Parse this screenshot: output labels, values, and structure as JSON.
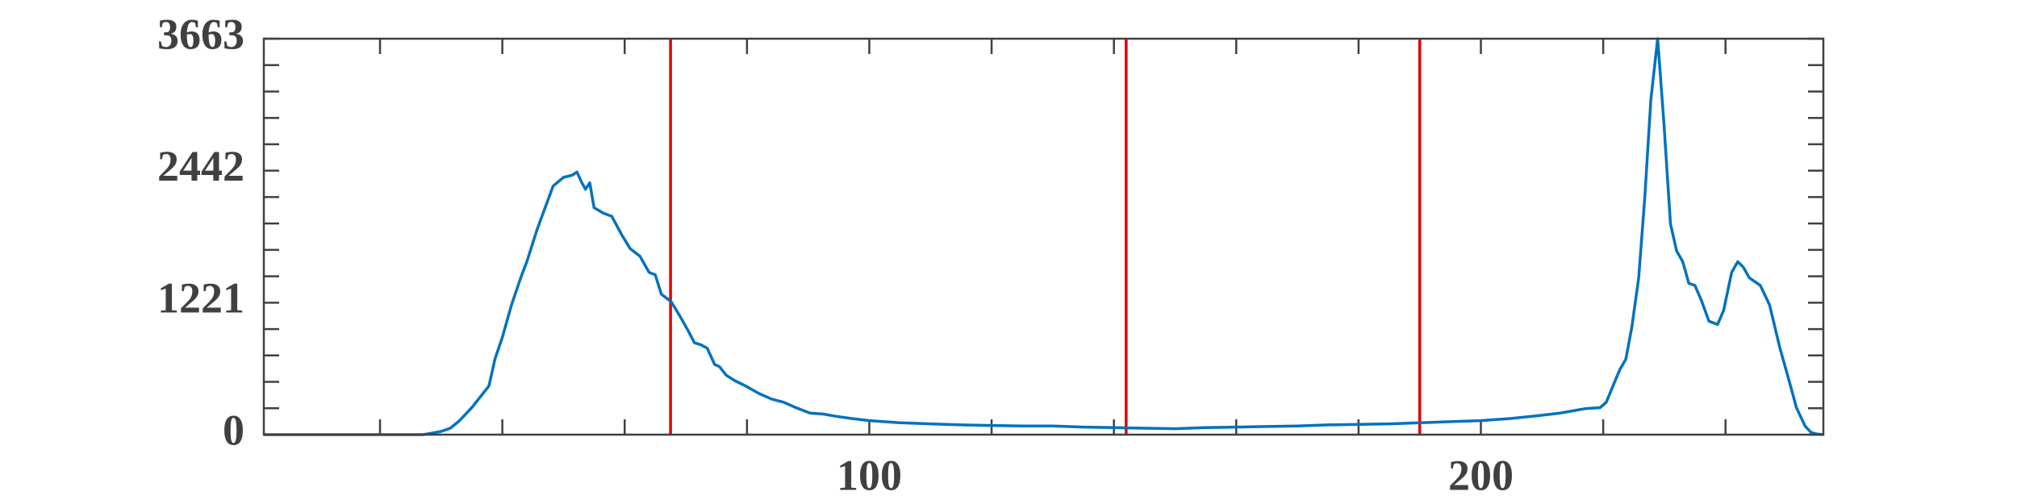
{
  "chart_data": {
    "type": "line",
    "x": [
      1,
      10,
      20,
      27,
      28,
      30,
      31.5,
      33,
      35,
      37.8,
      38.8,
      40,
      41.5,
      43,
      44,
      45.7,
      47,
      48.3,
      50,
      51.4,
      52.2,
      53,
      53.6,
      54.3,
      55,
      56.5,
      57.9,
      59.5,
      60.9,
      62.5,
      64,
      65,
      66,
      67.6,
      69,
      70.5,
      71.4,
      72.5,
      73.5,
      74.7,
      75.5,
      76.6,
      78,
      79.8,
      82,
      84,
      86,
      88,
      90.3,
      92.5,
      94.5,
      97,
      100,
      105,
      110,
      115,
      120,
      125,
      130,
      135,
      140,
      145,
      150,
      155,
      160,
      165,
      170,
      175,
      180,
      185,
      190,
      195,
      200,
      205,
      210,
      213,
      215,
      217,
      219.5,
      220.5,
      221.6,
      222.7,
      223.7,
      224.7,
      225.8,
      226.8,
      227.8,
      228.9,
      229.9,
      231,
      232,
      233,
      234,
      235,
      236,
      237.3,
      238.7,
      239.7,
      241,
      242,
      242.9,
      243.9,
      245.7,
      247.2,
      248.9,
      250.4,
      251.6,
      253,
      254,
      255,
      256
    ],
    "series": [
      {
        "name": "histogram",
        "color": "#0072bd",
        "values": [
          0,
          0,
          0,
          0,
          10,
          30,
          60,
          130,
          250,
          450,
          700,
          900,
          1200,
          1450,
          1600,
          1900,
          2100,
          2300,
          2380,
          2400,
          2430,
          2330,
          2270,
          2330,
          2100,
          2050,
          2020,
          1850,
          1720,
          1650,
          1500,
          1480,
          1300,
          1230,
          1100,
          950,
          850,
          830,
          800,
          650,
          630,
          550,
          500,
          450,
          380,
          330,
          300,
          250,
          200,
          190,
          170,
          150,
          130,
          110,
          100,
          90,
          85,
          80,
          80,
          70,
          65,
          60,
          55,
          65,
          70,
          75,
          80,
          90,
          95,
          100,
          110,
          120,
          130,
          150,
          180,
          200,
          220,
          240,
          250,
          300,
          450,
          600,
          700,
          1000,
          1450,
          2200,
          3100,
          3663,
          2900,
          1950,
          1700,
          1600,
          1400,
          1380,
          1250,
          1050,
          1020,
          1150,
          1500,
          1600,
          1550,
          1450,
          1380,
          1200,
          800,
          500,
          250,
          80,
          20,
          5,
          0
        ]
      }
    ],
    "thresholds": [
      67.5,
      142,
      190
    ],
    "threshold_color": "#e00000",
    "xlim": [
      1,
      256
    ],
    "xticks": [
      100,
      200
    ],
    "xminorticks": [
      20,
      40,
      60,
      80,
      120,
      140,
      160,
      180,
      220,
      240
    ],
    "ylim": [
      0,
      3663
    ],
    "yticks": [
      0,
      1221,
      2442,
      3663
    ],
    "yminorticks": [
      244.2,
      488.4,
      732.6,
      976.8,
      1465.2,
      1709.4,
      1953.6,
      2197.8,
      2686.2,
      2930.4,
      3174.6,
      3418.8
    ]
  }
}
